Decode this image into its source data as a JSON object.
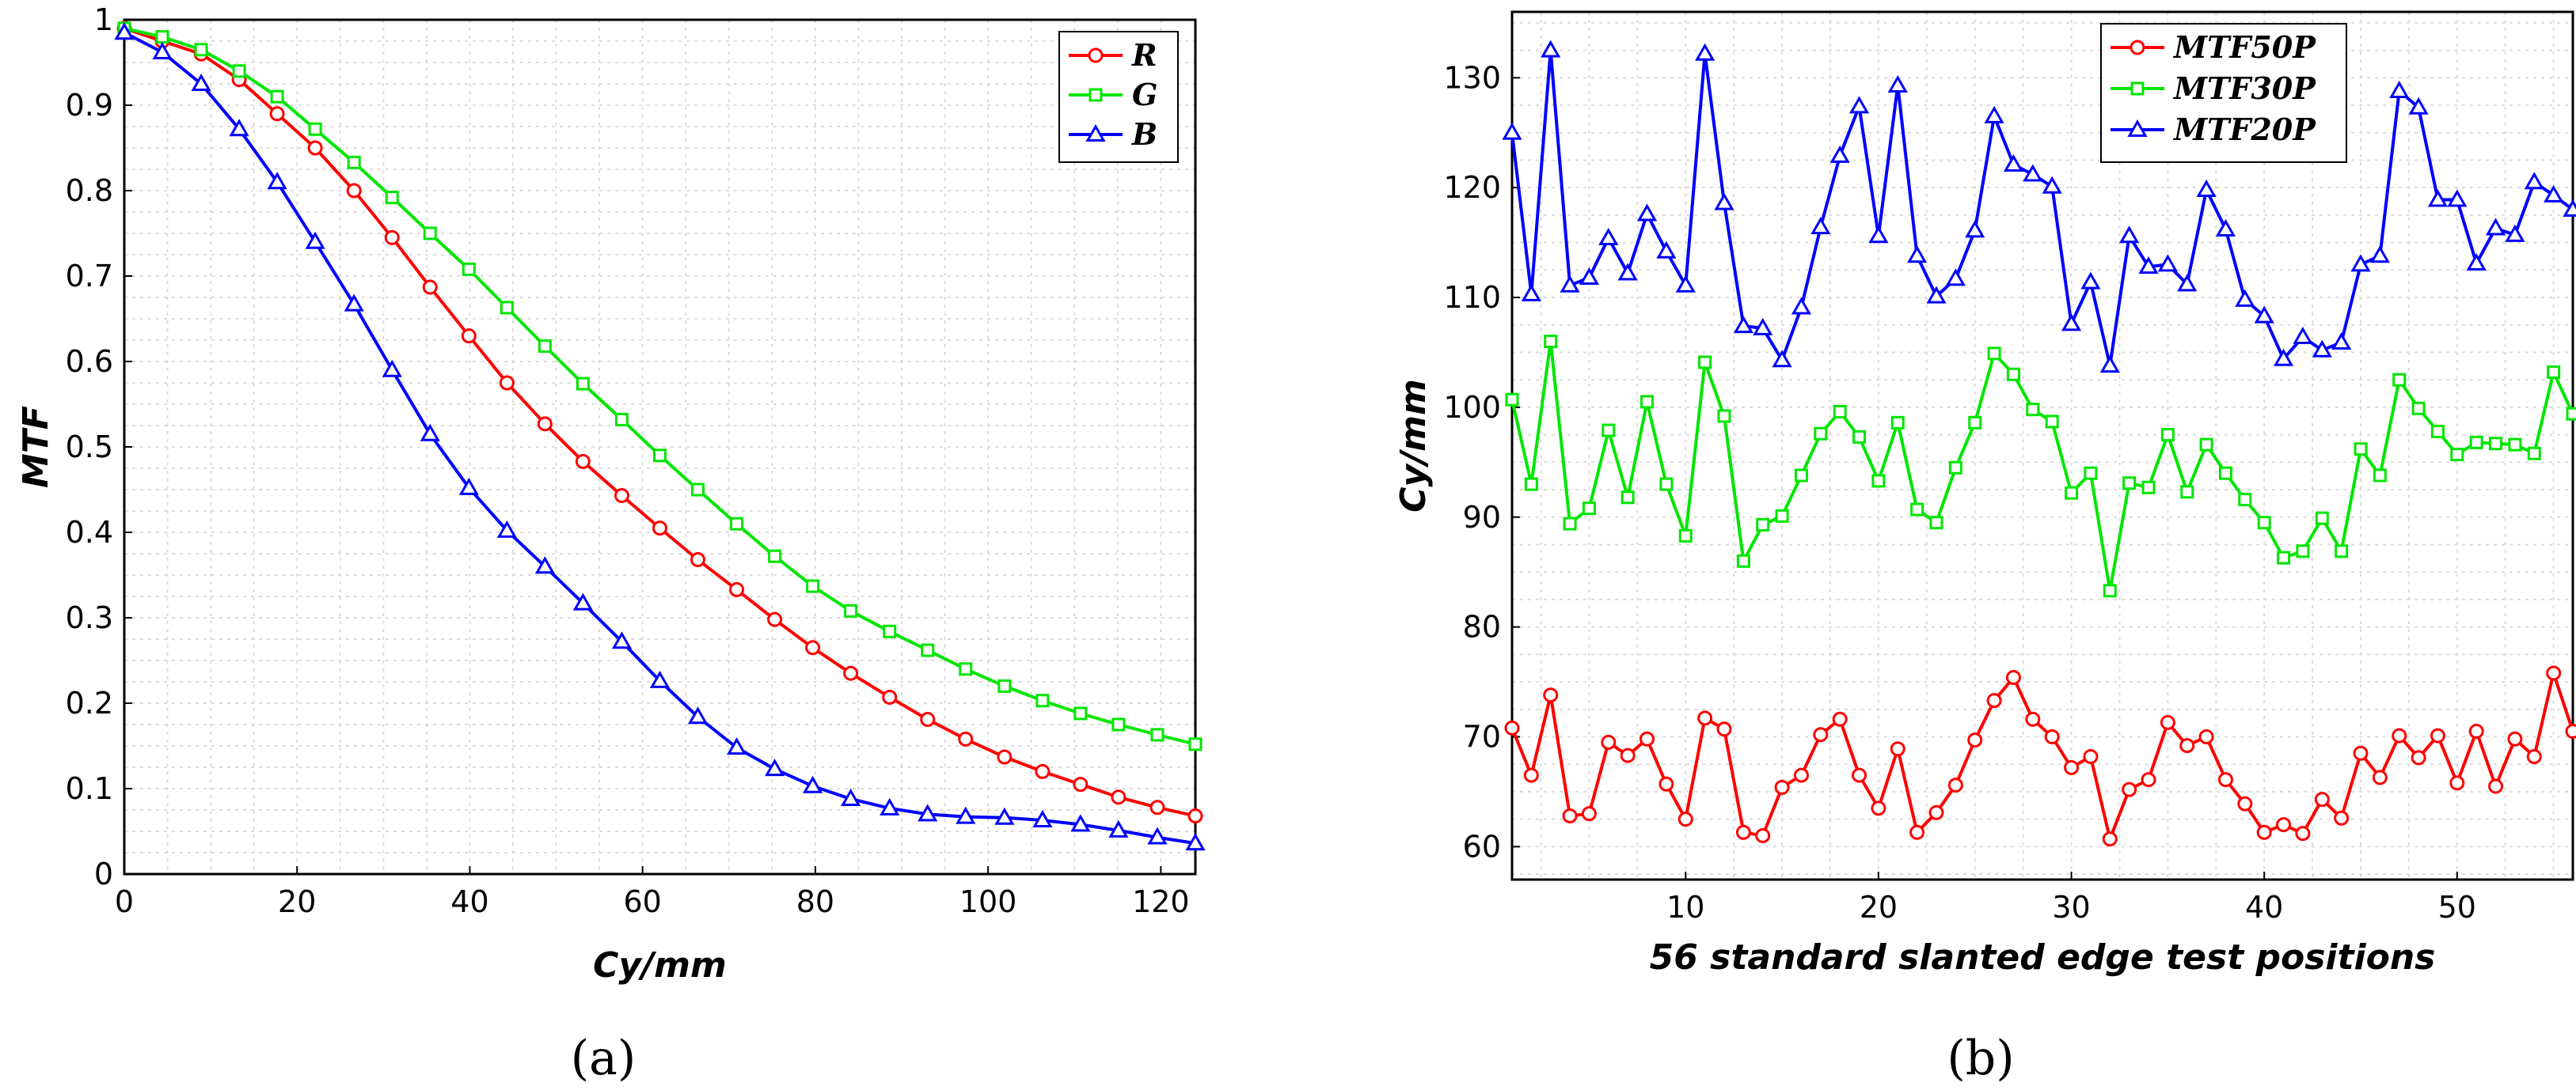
{
  "chart_data": [
    {
      "type": "line",
      "subfigure_label": "(a)",
      "xlabel": "Cy/mm",
      "ylabel": "MTF",
      "xlim": [
        0,
        124
      ],
      "ylim": [
        0,
        1.0
      ],
      "xticks": [
        0,
        20,
        40,
        60,
        80,
        100,
        120
      ],
      "yticks": [
        0,
        0.1,
        0.2,
        0.3,
        0.4,
        0.5,
        0.6,
        0.7,
        0.8,
        0.9,
        1
      ],
      "grid": true,
      "legend_position": "top-right",
      "x": [
        0,
        4.4,
        8.9,
        13.3,
        17.7,
        22.1,
        26.6,
        31.0,
        35.4,
        39.9,
        44.3,
        48.7,
        53.1,
        57.6,
        62.0,
        66.4,
        70.9,
        75.3,
        79.7,
        84.1,
        88.6,
        93.0,
        97.4,
        101.9,
        106.3,
        110.7,
        115.1,
        119.6,
        124.0
      ],
      "series": [
        {
          "name": "R",
          "color": "#ff0000",
          "marker": "circle",
          "values": [
            0.99,
            0.975,
            0.96,
            0.93,
            0.89,
            0.85,
            0.8,
            0.745,
            0.687,
            0.63,
            0.575,
            0.527,
            0.483,
            0.443,
            0.405,
            0.368,
            0.333,
            0.298,
            0.265,
            0.235,
            0.207,
            0.181,
            0.158,
            0.137,
            0.12,
            0.105,
            0.09,
            0.078,
            0.068
          ]
        },
        {
          "name": "G",
          "color": "#00e600",
          "marker": "square",
          "values": [
            0.99,
            0.98,
            0.965,
            0.94,
            0.91,
            0.872,
            0.833,
            0.792,
            0.75,
            0.708,
            0.663,
            0.618,
            0.574,
            0.532,
            0.49,
            0.45,
            0.41,
            0.372,
            0.337,
            0.308,
            0.284,
            0.262,
            0.24,
            0.22,
            0.203,
            0.188,
            0.175,
            0.163,
            0.152
          ]
        },
        {
          "name": "B",
          "color": "#0000ff",
          "marker": "triangle",
          "values": [
            0.985,
            0.962,
            0.925,
            0.872,
            0.81,
            0.74,
            0.667,
            0.59,
            0.515,
            0.452,
            0.402,
            0.36,
            0.317,
            0.272,
            0.226,
            0.184,
            0.148,
            0.123,
            0.103,
            0.088,
            0.077,
            0.07,
            0.067,
            0.066,
            0.063,
            0.058,
            0.051,
            0.043,
            0.036
          ]
        }
      ]
    },
    {
      "type": "line",
      "subfigure_label": "(b)",
      "xlabel": "56 standard slanted edge test positions",
      "ylabel": "Cy/mm",
      "xlim": [
        1,
        56
      ],
      "ylim": [
        57,
        136
      ],
      "xticks": [
        10,
        20,
        30,
        40,
        50
      ],
      "yticks": [
        60,
        70,
        80,
        90,
        100,
        110,
        120,
        130
      ],
      "grid": true,
      "legend_position": "top-center",
      "x": [
        1,
        2,
        3,
        4,
        5,
        6,
        7,
        8,
        9,
        10,
        11,
        12,
        13,
        14,
        15,
        16,
        17,
        18,
        19,
        20,
        21,
        22,
        23,
        24,
        25,
        26,
        27,
        28,
        29,
        30,
        31,
        32,
        33,
        34,
        35,
        36,
        37,
        38,
        39,
        40,
        41,
        42,
        43,
        44,
        45,
        46,
        47,
        48,
        49,
        50,
        51,
        52,
        53,
        54,
        55,
        56
      ],
      "series": [
        {
          "name": "MTF50P",
          "color": "#ff0000",
          "marker": "circle",
          "values": [
            70.8,
            66.5,
            73.8,
            62.8,
            63.0,
            69.5,
            68.3,
            69.8,
            65.7,
            62.5,
            71.7,
            70.7,
            61.3,
            61.0,
            65.4,
            66.5,
            70.2,
            71.6,
            66.5,
            63.5,
            68.9,
            61.3,
            63.1,
            65.6,
            69.7,
            73.3,
            75.4,
            71.6,
            70.0,
            67.2,
            68.2,
            60.7,
            65.2,
            66.1,
            71.3,
            69.2,
            70.0,
            66.1,
            63.9,
            61.3,
            62.0,
            61.2,
            64.3,
            62.6,
            68.5,
            66.3,
            70.1,
            68.1,
            70.1,
            65.8,
            70.5,
            65.5,
            69.8,
            68.2,
            75.8,
            70.5
          ]
        },
        {
          "name": "MTF30P",
          "color": "#00e600",
          "marker": "square",
          "values": [
            100.7,
            93.0,
            106.0,
            89.4,
            90.8,
            97.9,
            91.8,
            100.5,
            93.0,
            88.3,
            104.1,
            99.2,
            86.0,
            89.3,
            90.1,
            93.8,
            97.6,
            99.6,
            97.3,
            93.3,
            98.6,
            90.7,
            89.5,
            94.5,
            98.6,
            104.9,
            103.0,
            99.8,
            98.7,
            92.2,
            94.0,
            83.3,
            93.1,
            92.7,
            97.5,
            92.3,
            96.6,
            94.0,
            91.6,
            89.5,
            86.3,
            86.9,
            89.9,
            86.9,
            96.2,
            93.8,
            102.5,
            99.9,
            97.8,
            95.7,
            96.8,
            96.7,
            96.6,
            95.8,
            103.2,
            99.4
          ]
        },
        {
          "name": "MTF20P",
          "color": "#0000ff",
          "marker": "triangle",
          "values": [
            125.0,
            110.3,
            132.5,
            111.1,
            111.8,
            115.4,
            112.2,
            117.6,
            114.2,
            111.1,
            132.2,
            118.6,
            107.4,
            107.2,
            104.3,
            109.1,
            116.4,
            122.9,
            127.4,
            115.6,
            129.3,
            113.8,
            110.1,
            111.7,
            116.1,
            126.5,
            122.1,
            121.2,
            120.1,
            107.6,
            111.4,
            103.8,
            115.6,
            112.8,
            113.0,
            111.2,
            119.8,
            116.2,
            109.8,
            108.3,
            104.4,
            106.4,
            105.2,
            105.9,
            113.0,
            113.8,
            128.8,
            127.3,
            118.9,
            118.9,
            113.1,
            116.3,
            115.7,
            120.5,
            119.3,
            118.0
          ]
        }
      ]
    }
  ]
}
